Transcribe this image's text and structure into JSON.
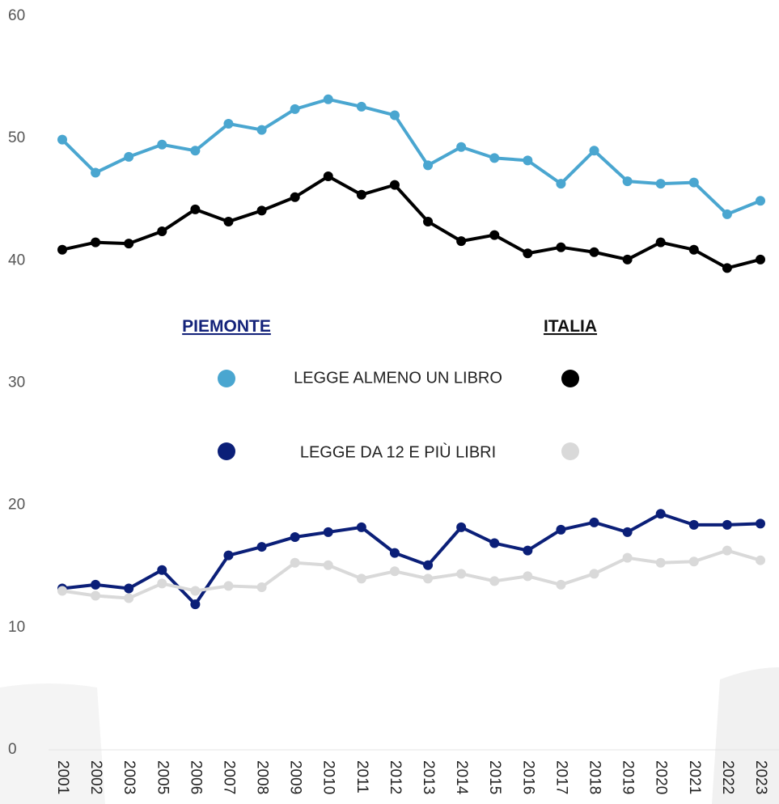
{
  "chart_data": {
    "type": "line",
    "categories": [
      "2001",
      "2002",
      "2003",
      "2005",
      "2006",
      "2007",
      "2008",
      "2009",
      "2010",
      "2011",
      "2012",
      "2013",
      "2014",
      "2015",
      "2016",
      "2017",
      "2018",
      "2019",
      "2020",
      "2021",
      "2022",
      "2023"
    ],
    "series": [
      {
        "color": "#4aa6d0",
        "values": [
          49.9,
          47.2,
          48.5,
          49.5,
          49.0,
          51.2,
          50.7,
          52.4,
          53.2,
          52.6,
          51.9,
          47.8,
          49.3,
          48.4,
          48.2,
          46.3,
          49.0,
          46.5,
          46.3,
          46.4,
          43.8,
          44.9
        ]
      },
      {
        "color": "#000000",
        "values": [
          40.9,
          41.5,
          41.4,
          42.4,
          44.2,
          43.2,
          44.1,
          45.2,
          46.9,
          45.4,
          46.2,
          43.2,
          41.6,
          42.1,
          40.6,
          41.1,
          40.7,
          40.1,
          41.5,
          40.9,
          39.4,
          40.1
        ]
      },
      {
        "color": "#0b1f78",
        "values": [
          13.2,
          13.5,
          13.2,
          14.7,
          11.9,
          15.9,
          16.6,
          17.4,
          17.8,
          18.2,
          16.1,
          15.1,
          18.2,
          16.9,
          16.3,
          18.0,
          18.6,
          17.8,
          19.3,
          18.4,
          18.4,
          18.5
        ]
      },
      {
        "color": "#d9d9d9",
        "values": [
          13.0,
          12.6,
          12.4,
          13.6,
          13.0,
          13.4,
          13.3,
          15.3,
          15.1,
          14.0,
          14.6,
          14.0,
          14.4,
          13.8,
          14.2,
          13.5,
          14.4,
          15.7,
          15.3,
          15.4,
          16.3,
          15.5
        ]
      }
    ],
    "legend": {
      "columns": [
        "PIEMONTE",
        "ITALIA"
      ],
      "rows": [
        "LEGGE ALMENO UN LIBRO",
        "LEGGE DA 12 E PIÙ LIBRI"
      ]
    },
    "ylim": [
      0,
      60
    ],
    "yticks": [
      0,
      10,
      20,
      30,
      40,
      50,
      60
    ],
    "grid": false
  }
}
